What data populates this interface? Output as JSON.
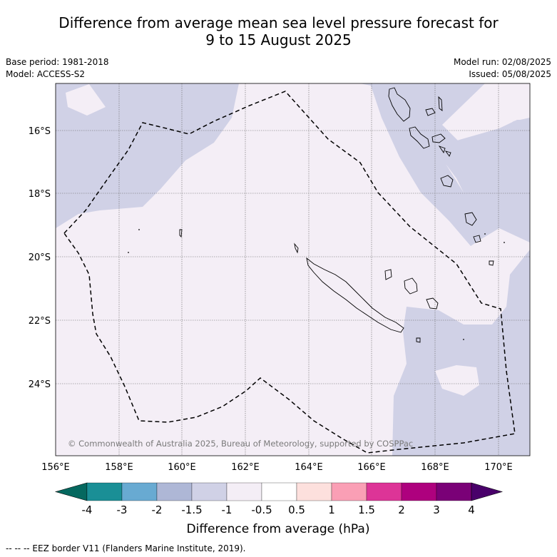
{
  "title_line1": "Difference from average mean sea level pressure forecast for",
  "title_line2": "9 to 15 August 2025",
  "base_period": "Base period: 1981-2018",
  "model": "Model: ACCESS-S2",
  "model_run": "Model run: 02/08/2025",
  "issued": "Issued: 05/08/2025",
  "copyright": "© Commonwealth of Australia 2025, Bureau of Meteorology, supported by COSPPac",
  "map": {
    "lat_ticks": [
      "16°S",
      "18°S",
      "20°S",
      "22°S",
      "24°S"
    ],
    "lon_ticks": [
      "156°E",
      "158°E",
      "160°E",
      "162°E",
      "164°E",
      "166°E",
      "168°E",
      "170°E"
    ]
  },
  "colorbar": {
    "label": "Difference from average (hPa)",
    "tick_labels": [
      "-4",
      "-3",
      "-2",
      "-1.5",
      "-1",
      "-0.5",
      "0.5",
      "1",
      "1.5",
      "2",
      "3",
      "4"
    ],
    "colors": [
      "#1a8f96",
      "#68aad2",
      "#aeb7d6",
      "#d0d1e6",
      "#f4eef6",
      "#ffffff",
      "#fde0dd",
      "#fa9fb5",
      "#dd3497",
      "#ae017e",
      "#7a0177"
    ],
    "under_color": "#05685f",
    "over_color": "#49006a"
  },
  "legend_note": "--  --  -- EEZ border V11 (Flanders Marine Institute, 2019).",
  "colors": {
    "shade_neg": "#d0d1e6",
    "shade_near": "#f4eef6"
  }
}
